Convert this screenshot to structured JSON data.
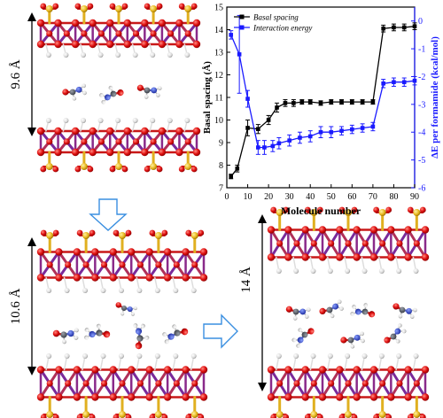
{
  "structures": {
    "top_left_spacing": "9.6 Å",
    "bottom_left_spacing": "10.6 Å",
    "bottom_right_spacing": "14 Å"
  },
  "chart_data": {
    "type": "line",
    "xlabel": "Molecule number",
    "ylabel_left": "Basal spacing (Å)",
    "ylabel_right": "ΔE per formamide (kcal/mol)",
    "xlim": [
      0,
      90
    ],
    "ylim_left": [
      7,
      15
    ],
    "ylim_right": [
      -6,
      0.5
    ],
    "xticks": [
      "0",
      "10",
      "20",
      "30",
      "40",
      "50",
      "60",
      "70",
      "80",
      "90"
    ],
    "yticks_left": [
      "7",
      "8",
      "9",
      "10",
      "11",
      "12",
      "13",
      "14",
      "15"
    ],
    "yticks_right": [
      "-6",
      "-5",
      "-4",
      "-3",
      "-2",
      "-1",
      "0"
    ],
    "legend_position": "top-left",
    "colors": {
      "basal": "#000000",
      "energy": "#1a1aff"
    },
    "series": [
      {
        "name": "Basal spacing",
        "axis": "left",
        "x": [
          2,
          5,
          10,
          15,
          20,
          24,
          28,
          32,
          36,
          40,
          45,
          50,
          55,
          60,
          65,
          70,
          75,
          80,
          85,
          90
        ],
        "y": [
          7.5,
          7.85,
          9.65,
          9.6,
          10.0,
          10.55,
          10.75,
          10.75,
          10.8,
          10.8,
          10.75,
          10.8,
          10.8,
          10.8,
          10.8,
          10.8,
          14.05,
          14.1,
          14.1,
          14.15
        ],
        "err": [
          0.1,
          0.15,
          0.35,
          0.2,
          0.2,
          0.2,
          0.15,
          0.15,
          0.1,
          0.1,
          0.1,
          0.1,
          0.1,
          0.1,
          0.1,
          0.1,
          0.15,
          0.15,
          0.15,
          0.15
        ]
      },
      {
        "name": "Interaction energy",
        "axis": "right",
        "x": [
          2,
          6,
          10,
          15,
          18,
          22,
          25,
          30,
          35,
          40,
          45,
          50,
          55,
          60,
          65,
          70,
          75,
          80,
          85,
          90
        ],
        "y": [
          -0.5,
          -1.2,
          -2.8,
          -4.55,
          -4.55,
          -4.5,
          -4.4,
          -4.3,
          -4.2,
          -4.15,
          -4.0,
          -4.0,
          -3.95,
          -3.9,
          -3.85,
          -3.8,
          -2.25,
          -2.2,
          -2.2,
          -2.15
        ],
        "err": [
          0.15,
          1.4,
          0.3,
          0.25,
          0.25,
          0.2,
          0.2,
          0.2,
          0.2,
          0.2,
          0.2,
          0.2,
          0.15,
          0.15,
          0.15,
          0.15,
          0.15,
          0.15,
          0.15,
          0.15
        ]
      }
    ]
  }
}
